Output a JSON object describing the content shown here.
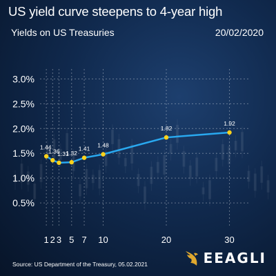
{
  "header": {
    "title": "US yield curve steepens to 4-year high",
    "subtitle": "Yields on US Treasuries",
    "date": "20/02/2020"
  },
  "footer": {
    "source": "Source: US Department of the Treasury, 05.02.2021",
    "logo_text": "EEAGLI"
  },
  "colors": {
    "line": "#29a9f0",
    "point": "#ffd21a",
    "text": "#ffffff",
    "grid": "#ffffff"
  },
  "chart_data": {
    "type": "line",
    "title": "US yield curve steepens to 4-year high",
    "subtitle": "Yields on US Treasuries",
    "xlabel": "",
    "ylabel": "",
    "x": [
      1,
      2,
      3,
      5,
      7,
      10,
      20,
      30
    ],
    "x_ticks": [
      1,
      2,
      3,
      5,
      7,
      10,
      20,
      30
    ],
    "y_ticks": [
      "0.5%",
      "1.0%",
      "1.5%",
      "2.0%",
      "2.5%",
      "3.0%"
    ],
    "y_tick_values": [
      0.5,
      1.0,
      1.5,
      2.0,
      2.5,
      3.0
    ],
    "ylim": [
      0,
      3.2
    ],
    "xlim": [
      0,
      33
    ],
    "grid": true,
    "series": [
      {
        "values": [
          1.44,
          1.36,
          1.31,
          1.32,
          1.41,
          1.48,
          1.82,
          1.92
        ],
        "labels": [
          "1.44",
          "1.36",
          "1.31",
          "1.32",
          "1.41",
          "1.48",
          "1.82",
          "1.92"
        ]
      }
    ]
  }
}
